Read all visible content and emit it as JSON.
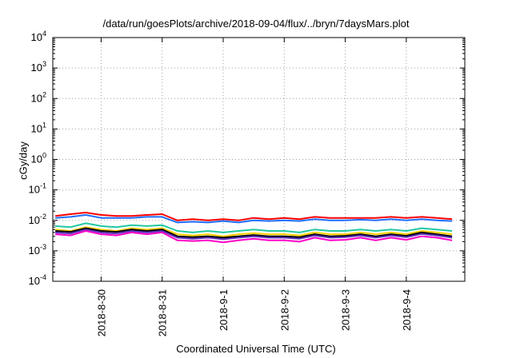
{
  "chart_data": {
    "type": "line",
    "title": "/data/run/goesPlots/archive/2018-09-04/flux/../bryn/7daysMars.plot",
    "xlabel": "Coordinated Universal Time (UTC)",
    "ylabel": "cGy/day",
    "yscale": "log",
    "ylim": [
      0.0001,
      10000
    ],
    "xlim": [
      "2018-08-29T05:00",
      "2018-09-04T23:00"
    ],
    "grid": true,
    "legend": "none",
    "x_ticks": [
      "2018-8-30",
      "2018-8-31",
      "2018-9-1",
      "2018-9-2",
      "2018-9-3",
      "2018-9-4"
    ],
    "y_ticks": [
      {
        "base": "10",
        "exp": "-4"
      },
      {
        "base": "10",
        "exp": "-3"
      },
      {
        "base": "10",
        "exp": "-2"
      },
      {
        "base": "10",
        "exp": "-1"
      },
      {
        "base": "10",
        "exp": "0"
      },
      {
        "base": "10",
        "exp": "1"
      },
      {
        "base": "10",
        "exp": "2"
      },
      {
        "base": "10",
        "exp": "3"
      },
      {
        "base": "10",
        "exp": "4"
      }
    ],
    "x": [
      "2018-08-29T06:00",
      "2018-08-29T12:00",
      "2018-08-29T18:00",
      "2018-08-30T00:00",
      "2018-08-30T06:00",
      "2018-08-30T12:00",
      "2018-08-30T18:00",
      "2018-08-31T00:00",
      "2018-08-31T06:00",
      "2018-08-31T12:00",
      "2018-08-31T18:00",
      "2018-09-01T00:00",
      "2018-09-01T06:00",
      "2018-09-01T12:00",
      "2018-09-01T18:00",
      "2018-09-02T00:00",
      "2018-09-02T06:00",
      "2018-09-02T12:00",
      "2018-09-02T18:00",
      "2018-09-03T00:00",
      "2018-09-03T06:00",
      "2018-09-03T12:00",
      "2018-09-03T18:00",
      "2018-09-04T00:00",
      "2018-09-04T06:00",
      "2018-09-04T12:00",
      "2018-09-04T18:00"
    ],
    "series": [
      {
        "color": "#ff0000",
        "values": [
          0.014,
          0.016,
          0.018,
          0.015,
          0.014,
          0.014,
          0.015,
          0.016,
          0.01,
          0.011,
          0.01,
          0.011,
          0.01,
          0.012,
          0.011,
          0.012,
          0.011,
          0.013,
          0.012,
          0.012,
          0.012,
          0.012,
          0.013,
          0.012,
          0.013,
          0.012,
          0.011
        ]
      },
      {
        "color": "#1f6fff",
        "values": [
          0.012,
          0.013,
          0.015,
          0.012,
          0.012,
          0.012,
          0.013,
          0.013,
          0.0085,
          0.009,
          0.0085,
          0.0095,
          0.0085,
          0.01,
          0.0095,
          0.01,
          0.0095,
          0.011,
          0.01,
          0.01,
          0.0105,
          0.01,
          0.011,
          0.01,
          0.011,
          0.01,
          0.0095
        ]
      },
      {
        "color": "#20c8a0",
        "values": [
          0.0065,
          0.006,
          0.008,
          0.0065,
          0.006,
          0.007,
          0.0065,
          0.007,
          0.0045,
          0.004,
          0.0045,
          0.004,
          0.0045,
          0.005,
          0.0045,
          0.0045,
          0.004,
          0.005,
          0.0045,
          0.0045,
          0.005,
          0.0045,
          0.005,
          0.0045,
          0.0055,
          0.005,
          0.0045
        ]
      },
      {
        "color": "#ffd000",
        "values": [
          0.005,
          0.0045,
          0.006,
          0.005,
          0.0045,
          0.0055,
          0.005,
          0.0055,
          0.0035,
          0.0032,
          0.0035,
          0.003,
          0.0035,
          0.0038,
          0.0035,
          0.0035,
          0.0032,
          0.004,
          0.0035,
          0.0035,
          0.004,
          0.0035,
          0.004,
          0.0035,
          0.0045,
          0.004,
          0.0035
        ]
      },
      {
        "color": "#000000",
        "values": [
          0.0045,
          0.0042,
          0.0055,
          0.0045,
          0.0042,
          0.005,
          0.0045,
          0.005,
          0.003,
          0.0028,
          0.003,
          0.0027,
          0.003,
          0.0033,
          0.003,
          0.003,
          0.0028,
          0.0035,
          0.003,
          0.0031,
          0.0035,
          0.003,
          0.0035,
          0.0031,
          0.004,
          0.0035,
          0.003
        ]
      },
      {
        "color": "#5a2db8",
        "values": [
          0.004,
          0.0037,
          0.005,
          0.004,
          0.0037,
          0.0045,
          0.004,
          0.0045,
          0.0027,
          0.0025,
          0.0027,
          0.0024,
          0.0027,
          0.003,
          0.0027,
          0.0027,
          0.0025,
          0.0032,
          0.0027,
          0.0028,
          0.0032,
          0.0027,
          0.0032,
          0.0028,
          0.0036,
          0.0032,
          0.0027
        ]
      },
      {
        "color": "#ff00c8",
        "values": [
          0.0035,
          0.0032,
          0.0045,
          0.0035,
          0.0032,
          0.004,
          0.0035,
          0.004,
          0.0022,
          0.0021,
          0.0022,
          0.0019,
          0.0022,
          0.0025,
          0.0022,
          0.0022,
          0.002,
          0.0027,
          0.0022,
          0.0023,
          0.0027,
          0.0022,
          0.0027,
          0.0023,
          0.003,
          0.0027,
          0.0022
        ]
      }
    ]
  }
}
